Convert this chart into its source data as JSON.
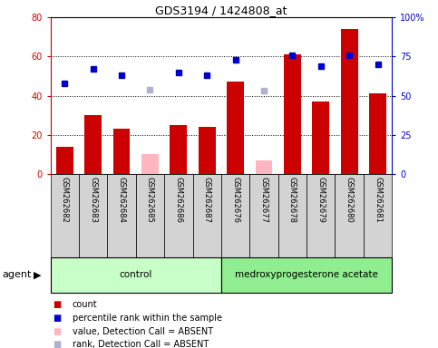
{
  "title": "GDS3194 / 1424808_at",
  "samples": [
    "GSM262682",
    "GSM262683",
    "GSM262684",
    "GSM262685",
    "GSM262686",
    "GSM262687",
    "GSM262676",
    "GSM262677",
    "GSM262678",
    "GSM262679",
    "GSM262680",
    "GSM262681"
  ],
  "bar_values": [
    14,
    30,
    23,
    null,
    25,
    24,
    47,
    null,
    61,
    37,
    74,
    41
  ],
  "bar_absent_values": [
    null,
    null,
    null,
    10,
    null,
    null,
    null,
    7,
    null,
    null,
    null,
    null
  ],
  "rank_values": [
    58,
    67,
    63,
    null,
    65,
    63,
    73,
    null,
    76,
    69,
    76,
    70
  ],
  "rank_absent_values": [
    null,
    null,
    null,
    54,
    null,
    null,
    null,
    53,
    null,
    null,
    null,
    null
  ],
  "ylim_left": [
    0,
    80
  ],
  "ylim_right": [
    0,
    100
  ],
  "yticks_left": [
    0,
    20,
    40,
    60,
    80
  ],
  "ytick_labels_left": [
    "0",
    "20",
    "40",
    "60",
    "80"
  ],
  "yticks_right": [
    0,
    25,
    50,
    75,
    100
  ],
  "ytick_labels_right": [
    "0",
    "25",
    "50",
    "75",
    "100%"
  ],
  "left_color": "#cc0000",
  "right_color": "#0000cc",
  "absent_bar_color": "#ffb6c1",
  "absent_rank_color": "#b0b0d0",
  "label_area_color": "#d3d3d3",
  "control_color": "#c8ffc8",
  "medro_color": "#90ee90",
  "group_labels": [
    "control",
    "medroxyprogesterone acetate"
  ],
  "legend_labels": [
    "count",
    "percentile rank within the sample",
    "value, Detection Call = ABSENT",
    "rank, Detection Call = ABSENT"
  ],
  "legend_colors": [
    "#cc0000",
    "#0000cc",
    "#ffb6c1",
    "#b0b0d0"
  ]
}
